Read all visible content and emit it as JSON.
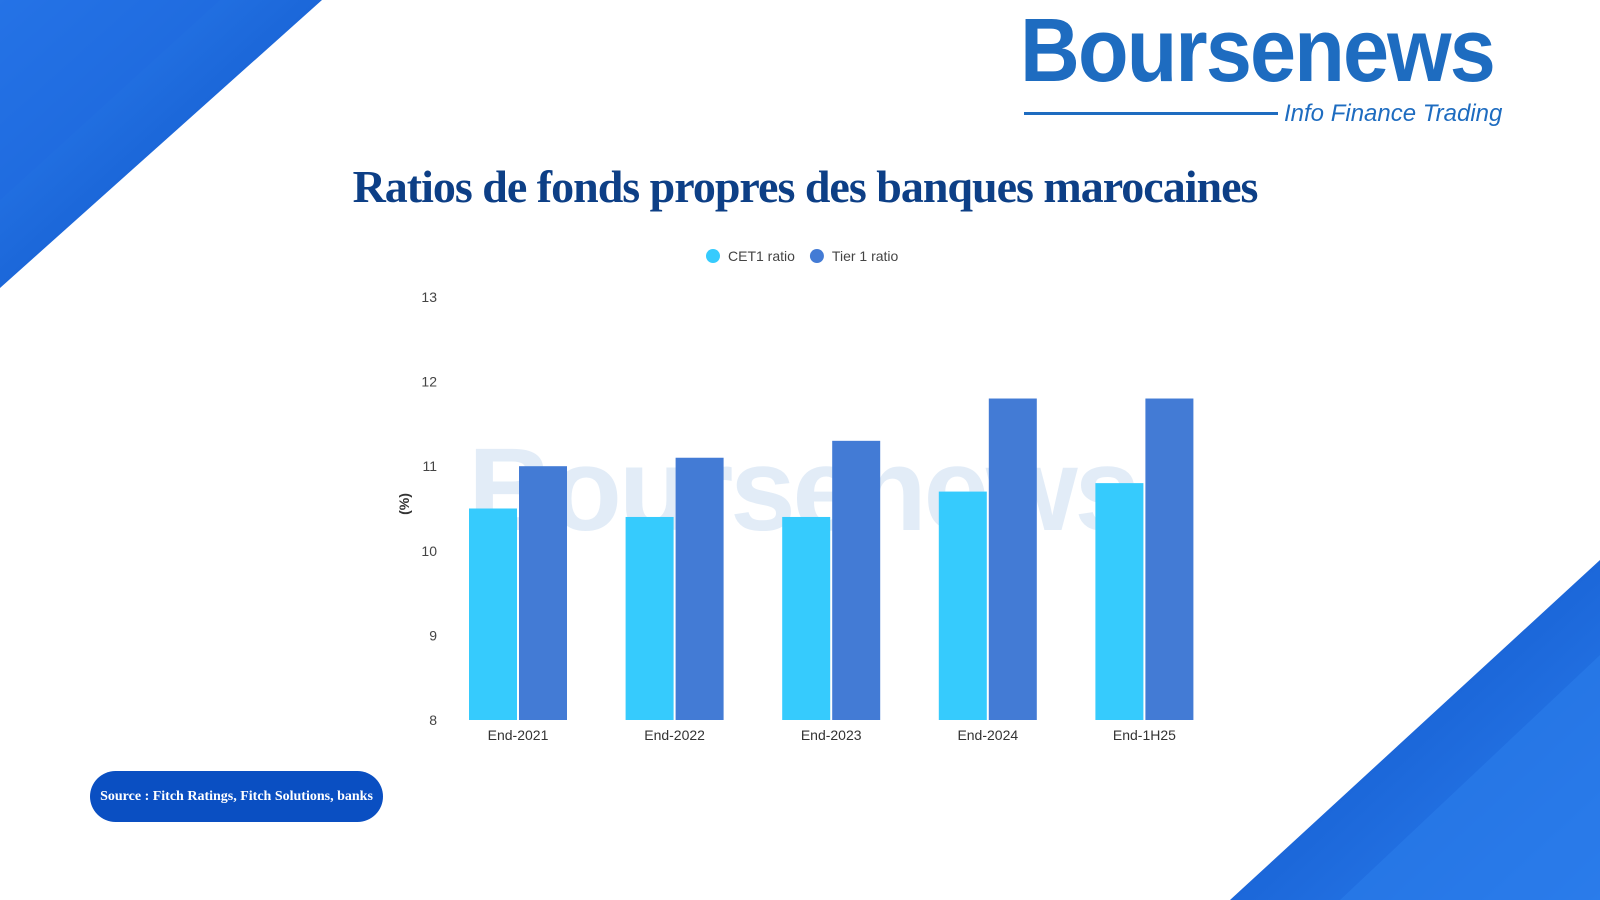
{
  "brand": {
    "name": "Boursenews",
    "tagline": "Info Finance Trading"
  },
  "source": "Source : Fitch Ratings, Fitch Solutions, banks",
  "chart_data": {
    "type": "bar",
    "title": "Ratios de fonds propres des banques marocaines",
    "categories": [
      "End-2021",
      "End-2022",
      "End-2023",
      "End-2024",
      "End-1H25"
    ],
    "series": [
      {
        "name": "CET1 ratio",
        "color": "#36cbfd",
        "values": [
          10.5,
          10.4,
          10.4,
          10.7,
          10.8
        ]
      },
      {
        "name": "Tier 1 ratio",
        "color": "#437bd5",
        "values": [
          11.0,
          11.1,
          11.3,
          11.8,
          11.8
        ]
      }
    ],
    "ylabel": "(%)",
    "xlabel": "",
    "ylim": [
      8,
      13
    ],
    "yticks": [
      8,
      9,
      10,
      11,
      12,
      13
    ],
    "grid": false,
    "legend": "top-center",
    "watermark": "Boursenews"
  }
}
